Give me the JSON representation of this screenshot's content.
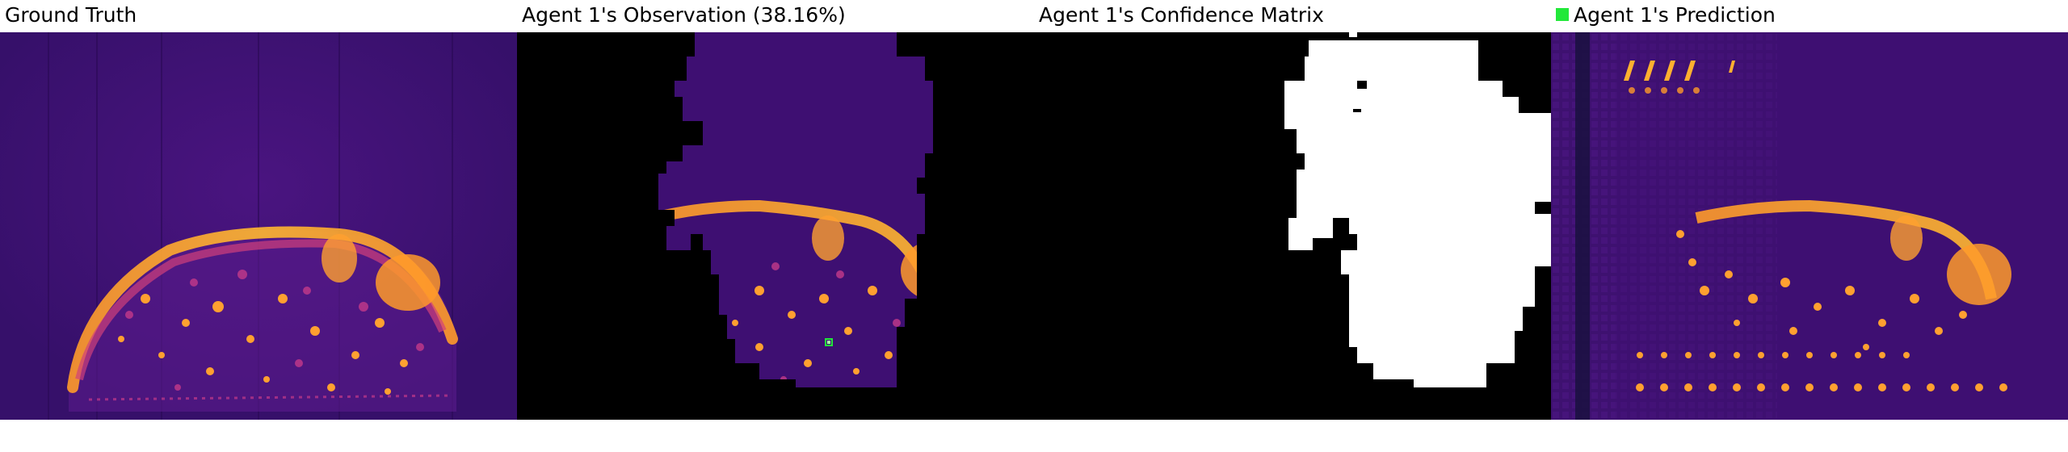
{
  "panels": {
    "ground_truth": {
      "title": "Ground Truth"
    },
    "observation": {
      "title": "Agent 1's Observation (38.16%)"
    },
    "confidence": {
      "title": "Agent 1's Confidence Matrix"
    },
    "prediction": {
      "title": "Agent 1's Prediction"
    }
  },
  "colors": {
    "heatmap_background": "#3a0d6e",
    "heatmap_mid": "#c43a8a",
    "heatmap_hot": "#ffb020",
    "mask": "#000000",
    "confidence_high": "#ffffff",
    "agent_marker": "#22e83a"
  }
}
